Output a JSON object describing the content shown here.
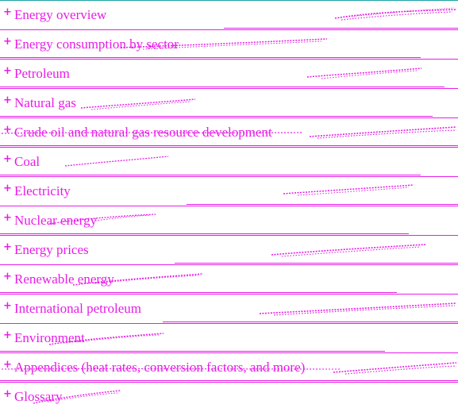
{
  "theme": {
    "text_color": "#e81ce8",
    "rule_color": "#e81ce8",
    "top_rule_color": "#1aa3a3"
  },
  "menu": {
    "expand_icon": "plus-icon",
    "items": [
      {
        "label": "Energy overview"
      },
      {
        "label": "Energy consumption by sector"
      },
      {
        "label": "Petroleum"
      },
      {
        "label": "Natural gas"
      },
      {
        "label": "Crude oil and natural gas resource development"
      },
      {
        "label": "Coal"
      },
      {
        "label": "Electricity"
      },
      {
        "label": "Nuclear energy"
      },
      {
        "label": "Energy prices"
      },
      {
        "label": "Renewable energy"
      },
      {
        "label": "International petroleum"
      },
      {
        "label": "Environment"
      },
      {
        "label": "Appendices (heat rates, conversion factors, and more)"
      },
      {
        "label": "Glossary"
      }
    ]
  }
}
